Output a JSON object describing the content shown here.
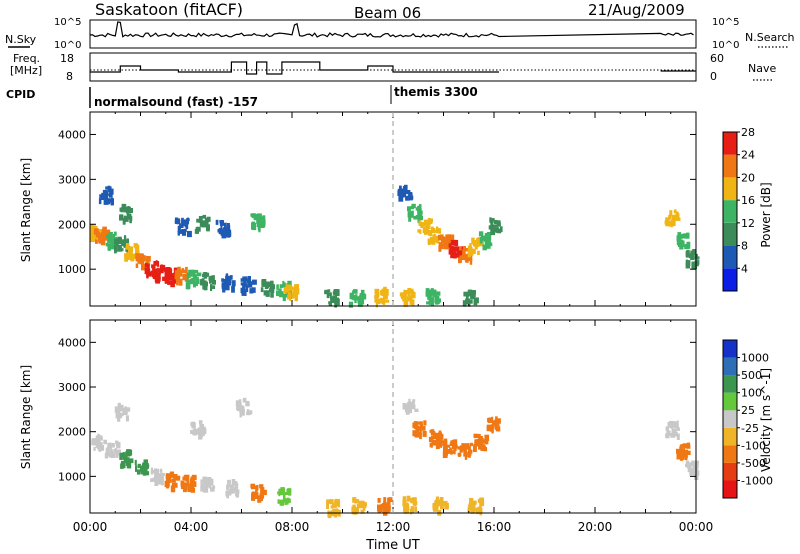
{
  "header": {
    "title": "Saskatoon (fitACF)",
    "beam": "Beam 06",
    "date": "21/Aug/2009"
  },
  "strip_labels": {
    "nsky": "N.Sky",
    "nsearch": "N.Search",
    "freq_line1": "Freq.",
    "freq_line2": "[MHz]",
    "nave": "Nave",
    "cpid": "CPID",
    "nsky_ticks": [
      "10^5",
      "10^0"
    ],
    "nsearch_ticks": [
      "10^5",
      "10^0"
    ],
    "freq_ticks": [
      "18",
      "8"
    ],
    "nave_ticks": [
      "60",
      "0"
    ]
  },
  "cpid_labels": [
    {
      "text": "normalsound (fast) -157",
      "hour": 0.0
    },
    {
      "text": "themis 3300",
      "hour": 12.0
    }
  ],
  "chart_data": [
    {
      "type": "heatmap",
      "title": "",
      "xlabel": "",
      "ylabel": "Slant Range [km]",
      "xlim": [
        0,
        24
      ],
      "ylim": [
        180,
        4500
      ],
      "y_ticks": [
        1000,
        2000,
        3000,
        4000
      ],
      "colorbar": {
        "label": "Power [dB]",
        "ticks": [
          4,
          8,
          12,
          16,
          20,
          24,
          28
        ],
        "colors": [
          "#0a1ee6",
          "#1e5ab4",
          "#3c8c5a",
          "#3cb464",
          "#f0b414",
          "#f07814",
          "#e61e14"
        ]
      },
      "data_gaps_hours": [
        [
          8.0,
          9.1
        ],
        [
          16.2,
          22.6
        ]
      ],
      "cells": [
        {
          "t": 0.1,
          "r": 1850,
          "v": 20
        },
        {
          "t": 0.4,
          "r": 1800,
          "v": 24
        },
        {
          "t": 0.8,
          "r": 1700,
          "v": 16
        },
        {
          "t": 1.2,
          "r": 1600,
          "v": 12
        },
        {
          "t": 1.6,
          "r": 1450,
          "v": 20
        },
        {
          "t": 2.0,
          "r": 1250,
          "v": 24
        },
        {
          "t": 2.4,
          "r": 1050,
          "v": 28
        },
        {
          "t": 2.8,
          "r": 950,
          "v": 28
        },
        {
          "t": 3.2,
          "r": 900,
          "v": 28
        },
        {
          "t": 3.6,
          "r": 900,
          "v": 24
        },
        {
          "t": 4.0,
          "r": 850,
          "v": 16
        },
        {
          "t": 4.6,
          "r": 800,
          "v": 12
        },
        {
          "t": 5.4,
          "r": 750,
          "v": 8
        },
        {
          "t": 6.2,
          "r": 700,
          "v": 8
        },
        {
          "t": 7.0,
          "r": 650,
          "v": 12
        },
        {
          "t": 7.6,
          "r": 600,
          "v": 16
        },
        {
          "t": 7.9,
          "r": 550,
          "v": 20
        },
        {
          "t": 0.6,
          "r": 2700,
          "v": 8
        },
        {
          "t": 1.4,
          "r": 2300,
          "v": 12
        },
        {
          "t": 3.6,
          "r": 2000,
          "v": 8
        },
        {
          "t": 4.4,
          "r": 2050,
          "v": 12
        },
        {
          "t": 5.2,
          "r": 1950,
          "v": 8
        },
        {
          "t": 6.6,
          "r": 2100,
          "v": 16
        },
        {
          "t": 12.4,
          "r": 2750,
          "v": 8
        },
        {
          "t": 12.8,
          "r": 2300,
          "v": 16
        },
        {
          "t": 13.2,
          "r": 2000,
          "v": 20
        },
        {
          "t": 13.6,
          "r": 1800,
          "v": 20
        },
        {
          "t": 14.0,
          "r": 1650,
          "v": 24
        },
        {
          "t": 14.4,
          "r": 1500,
          "v": 28
        },
        {
          "t": 14.8,
          "r": 1400,
          "v": 24
        },
        {
          "t": 15.2,
          "r": 1550,
          "v": 20
        },
        {
          "t": 15.6,
          "r": 1700,
          "v": 16
        },
        {
          "t": 16.0,
          "r": 2000,
          "v": 12
        },
        {
          "t": 9.5,
          "r": 400,
          "v": 12
        },
        {
          "t": 10.5,
          "r": 420,
          "v": 16
        },
        {
          "t": 11.5,
          "r": 450,
          "v": 20
        },
        {
          "t": 12.5,
          "r": 430,
          "v": 20
        },
        {
          "t": 13.5,
          "r": 420,
          "v": 16
        },
        {
          "t": 15.0,
          "r": 410,
          "v": 12
        },
        {
          "t": 23.0,
          "r": 2200,
          "v": 20
        },
        {
          "t": 23.4,
          "r": 1700,
          "v": 16
        },
        {
          "t": 23.8,
          "r": 1300,
          "v": 12
        }
      ]
    },
    {
      "type": "heatmap",
      "title": "",
      "xlabel": "Time UT",
      "ylabel": "Slant Range [km]",
      "xlim": [
        0,
        24
      ],
      "ylim": [
        180,
        4500
      ],
      "x_ticks": [
        "00:00",
        "04:00",
        "08:00",
        "12:00",
        "16:00",
        "20:00",
        "00:00"
      ],
      "y_ticks": [
        1000,
        2000,
        3000,
        4000
      ],
      "colorbar": {
        "label": "Velocity [m s^-1]",
        "ticks": [
          "1000",
          "500",
          "100",
          "25",
          "-25",
          "-100",
          "-500",
          "-1000"
        ],
        "colors": [
          "#1432c8",
          "#2d6eb4",
          "#3c9650",
          "#64c83c",
          "#c8c8c8",
          "#f0b428",
          "#f07814",
          "#e63c14",
          "#e61414"
        ]
      },
      "data_gaps_hours": [
        [
          8.0,
          9.1
        ],
        [
          16.2,
          22.6
        ]
      ],
      "cells": [
        {
          "t": 0.3,
          "r": 1800,
          "v": 0
        },
        {
          "t": 0.8,
          "r": 1650,
          "v": 0
        },
        {
          "t": 1.4,
          "r": 1450,
          "v": 150
        },
        {
          "t": 2.0,
          "r": 1250,
          "v": 300
        },
        {
          "t": 2.6,
          "r": 1050,
          "v": 0
        },
        {
          "t": 3.2,
          "r": 950,
          "v": -120
        },
        {
          "t": 3.8,
          "r": 900,
          "v": -200
        },
        {
          "t": 4.6,
          "r": 850,
          "v": 0
        },
        {
          "t": 5.6,
          "r": 800,
          "v": 0
        },
        {
          "t": 6.6,
          "r": 700,
          "v": -150
        },
        {
          "t": 7.6,
          "r": 600,
          "v": 80
        },
        {
          "t": 1.2,
          "r": 2500,
          "v": 0
        },
        {
          "t": 4.2,
          "r": 2100,
          "v": 0
        },
        {
          "t": 6.0,
          "r": 2600,
          "v": 0
        },
        {
          "t": 12.6,
          "r": 2600,
          "v": 0
        },
        {
          "t": 13.0,
          "r": 2100,
          "v": -200
        },
        {
          "t": 13.6,
          "r": 1900,
          "v": -400
        },
        {
          "t": 14.2,
          "r": 1700,
          "v": -500
        },
        {
          "t": 14.8,
          "r": 1600,
          "v": -400
        },
        {
          "t": 15.4,
          "r": 1800,
          "v": -300
        },
        {
          "t": 15.9,
          "r": 2200,
          "v": -200
        },
        {
          "t": 9.6,
          "r": 350,
          "v": -100
        },
        {
          "t": 10.6,
          "r": 380,
          "v": -100
        },
        {
          "t": 11.6,
          "r": 400,
          "v": -150
        },
        {
          "t": 12.6,
          "r": 420,
          "v": -100
        },
        {
          "t": 13.8,
          "r": 400,
          "v": -80
        },
        {
          "t": 15.2,
          "r": 380,
          "v": -60
        },
        {
          "t": 23.0,
          "r": 2100,
          "v": 0
        },
        {
          "t": 23.4,
          "r": 1600,
          "v": -150
        },
        {
          "t": 23.8,
          "r": 1200,
          "v": 0
        }
      ]
    }
  ]
}
